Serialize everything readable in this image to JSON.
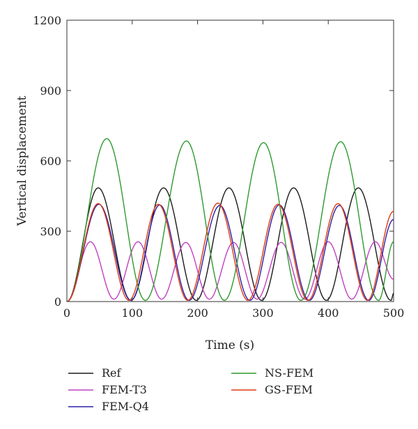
{
  "chart_data": {
    "type": "line",
    "title": "",
    "xlabel": "Time (s)",
    "ylabel": "Vertical displacement",
    "xlim": [
      0,
      500
    ],
    "ylim": [
      0,
      1200
    ],
    "xticks": [
      0,
      100,
      200,
      300,
      400,
      500
    ],
    "yticks": [
      0,
      300,
      600,
      900,
      1200
    ],
    "grid": false,
    "legend_position": "below",
    "series": [
      {
        "name": "Ref",
        "color": "#1a1a1a",
        "x": [
          0,
          48,
          98,
          148,
          198,
          248,
          298,
          347,
          397,
          446,
          496,
          500
        ],
        "y": [
          0,
          485,
          5,
          485,
          5,
          485,
          5,
          485,
          5,
          485,
          5,
          35
        ]
      },
      {
        "name": "FEM-T3",
        "color": "#c040c0",
        "x": [
          0,
          36,
          72,
          109,
          145,
          182,
          218,
          255,
          291,
          328,
          364,
          400,
          436,
          472,
          500
        ],
        "y": [
          0,
          255,
          10,
          255,
          10,
          252,
          10,
          252,
          10,
          252,
          10,
          255,
          10,
          255,
          95
        ]
      },
      {
        "name": "FEM-Q4",
        "color": "#2a1fa8",
        "x": [
          0,
          49,
          98,
          142,
          187,
          234,
          280,
          325,
          371,
          417,
          462,
          500
        ],
        "y": [
          0,
          415,
          5,
          412,
          5,
          410,
          5,
          412,
          5,
          410,
          5,
          350
        ]
      },
      {
        "name": "NS-FEM",
        "color": "#2e9a2e",
        "x": [
          0,
          61,
          120,
          183,
          241,
          301,
          358,
          419,
          477,
          500
        ],
        "y": [
          0,
          695,
          5,
          685,
          5,
          678,
          5,
          682,
          5,
          255
        ]
      },
      {
        "name": "GS-FEM",
        "color": "#e03a10",
        "x": [
          0,
          48,
          95,
          140,
          185,
          231,
          277,
          323,
          369,
          415,
          460,
          500
        ],
        "y": [
          0,
          418,
          5,
          415,
          5,
          420,
          5,
          415,
          5,
          418,
          5,
          385
        ]
      }
    ]
  }
}
